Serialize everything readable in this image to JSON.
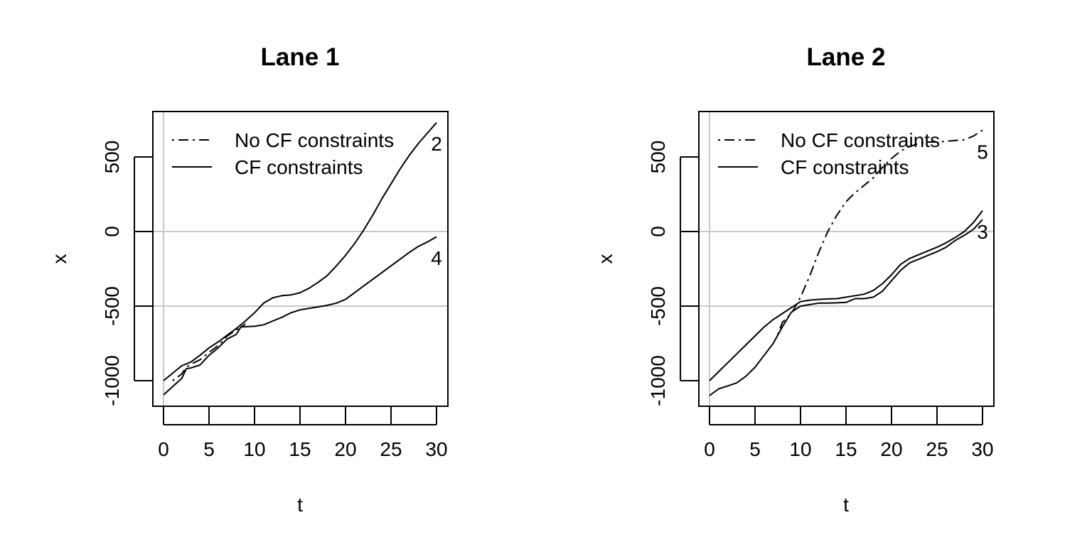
{
  "chart_data": [
    {
      "type": "line",
      "title": "Lane 1",
      "xlabel": "t",
      "ylabel": "x",
      "xlim": [
        0,
        30
      ],
      "ylim": [
        -1150,
        800
      ],
      "x_ticks": [
        "0",
        "5",
        "10",
        "15",
        "20",
        "25",
        "30"
      ],
      "y_ticks": [
        "-1000",
        "-500",
        "0",
        "500"
      ],
      "reference_lines": {
        "vertical": [
          0
        ],
        "horizontal": [
          0,
          -500
        ],
        "color": "#c8c8c8"
      },
      "legend": {
        "position": "top-left",
        "entries": [
          {
            "label": "No CF constraints",
            "style": "dashdot"
          },
          {
            "label": "CF constraints",
            "style": "solid"
          }
        ]
      },
      "series": [
        {
          "label": "2",
          "style": "solid",
          "points": [
            [
              0,
              -1000
            ],
            [
              1,
              -950
            ],
            [
              2,
              -900
            ],
            [
              3,
              -875
            ],
            [
              4,
              -830
            ],
            [
              5,
              -780
            ],
            [
              6,
              -740
            ],
            [
              7,
              -695
            ],
            [
              8,
              -650
            ],
            [
              9,
              -600
            ],
            [
              10,
              -545
            ],
            [
              11,
              -480
            ],
            [
              12,
              -445
            ],
            [
              13,
              -430
            ],
            [
              14,
              -425
            ],
            [
              15,
              -410
            ],
            [
              16,
              -380
            ],
            [
              17,
              -340
            ],
            [
              18,
              -295
            ],
            [
              19,
              -230
            ],
            [
              20,
              -160
            ],
            [
              21,
              -80
            ],
            [
              22,
              10
            ],
            [
              23,
              110
            ],
            [
              24,
              220
            ],
            [
              25,
              320
            ],
            [
              26,
              420
            ],
            [
              27,
              510
            ],
            [
              28,
              590
            ],
            [
              29,
              660
            ],
            [
              30,
              730
            ]
          ]
        },
        {
          "label": "4",
          "style": "solid",
          "points": [
            [
              0,
              -1095
            ],
            [
              1,
              -1040
            ],
            [
              2,
              -985
            ],
            [
              2.5,
              -920
            ],
            [
              3,
              -915
            ],
            [
              4,
              -895
            ],
            [
              5,
              -830
            ],
            [
              6,
              -780
            ],
            [
              7,
              -720
            ],
            [
              8,
              -690
            ],
            [
              8.5,
              -640
            ],
            [
              10,
              -635
            ],
            [
              11,
              -625
            ],
            [
              12,
              -600
            ],
            [
              13,
              -575
            ],
            [
              14,
              -545
            ],
            [
              15,
              -525
            ],
            [
              16,
              -515
            ],
            [
              17,
              -505
            ],
            [
              18,
              -495
            ],
            [
              19,
              -480
            ],
            [
              20,
              -455
            ],
            [
              21,
              -410
            ],
            [
              22,
              -365
            ],
            [
              23,
              -320
            ],
            [
              24,
              -275
            ],
            [
              25,
              -230
            ],
            [
              26,
              -185
            ],
            [
              27,
              -140
            ],
            [
              28,
              -100
            ],
            [
              29,
              -70
            ],
            [
              30,
              -35
            ]
          ]
        },
        {
          "label": "",
          "style": "dashdot",
          "points": [
            [
              1,
              -1000
            ],
            [
              2,
              -955
            ],
            [
              2.5,
              -910
            ],
            [
              3,
              -890
            ],
            [
              4,
              -860
            ],
            [
              5,
              -810
            ],
            [
              6,
              -765
            ],
            [
              7,
              -700
            ],
            [
              8,
              -660
            ],
            [
              9,
              -620
            ]
          ]
        }
      ],
      "curve_labels": [
        {
          "text": "2",
          "x": 30,
          "y": 590
        },
        {
          "text": "4",
          "x": 30,
          "y": -175
        }
      ]
    },
    {
      "type": "line",
      "title": "Lane 2",
      "xlabel": "t",
      "ylabel": "x",
      "xlim": [
        0,
        30
      ],
      "ylim": [
        -1150,
        800
      ],
      "x_ticks": [
        "0",
        "5",
        "10",
        "15",
        "20",
        "25",
        "30"
      ],
      "y_ticks": [
        "-1000",
        "-500",
        "0",
        "500"
      ],
      "reference_lines": {
        "vertical": [
          0
        ],
        "horizontal": [
          0,
          -500
        ],
        "color": "#c8c8c8"
      },
      "legend": {
        "position": "top-left",
        "entries": [
          {
            "label": "No CF constraints",
            "style": "dashdot"
          },
          {
            "label": "CF constraints",
            "style": "solid"
          }
        ]
      },
      "series": [
        {
          "label": "5",
          "style": "dashdot",
          "points": [
            [
              7.5,
              -690
            ],
            [
              8,
              -610
            ],
            [
              9,
              -550
            ],
            [
              10,
              -440
            ],
            [
              11,
              -300
            ],
            [
              12,
              -140
            ],
            [
              13,
              0
            ],
            [
              14,
              110
            ],
            [
              15,
              200
            ],
            [
              16,
              260
            ],
            [
              17,
              310
            ],
            [
              18,
              360
            ],
            [
              19,
              430
            ],
            [
              20,
              490
            ],
            [
              21,
              540
            ],
            [
              22,
              570
            ],
            [
              23,
              590
            ],
            [
              24,
              600
            ],
            [
              25,
              600
            ],
            [
              26,
              605
            ],
            [
              27,
              610
            ],
            [
              28,
              615
            ],
            [
              29,
              640
            ],
            [
              30,
              680
            ]
          ]
        },
        {
          "label": "3",
          "style": "solid",
          "points": [
            [
              0,
              -1100
            ],
            [
              1,
              -1055
            ],
            [
              2,
              -1035
            ],
            [
              3,
              -1015
            ],
            [
              4,
              -970
            ],
            [
              5,
              -910
            ],
            [
              6,
              -830
            ],
            [
              7,
              -750
            ],
            [
              8,
              -640
            ],
            [
              9,
              -540
            ],
            [
              10,
              -500
            ],
            [
              11,
              -490
            ],
            [
              12,
              -480
            ],
            [
              13,
              -480
            ],
            [
              14,
              -478
            ],
            [
              15,
              -475
            ],
            [
              16,
              -450
            ],
            [
              17,
              -450
            ],
            [
              18,
              -440
            ],
            [
              19,
              -400
            ],
            [
              20,
              -330
            ],
            [
              21,
              -260
            ],
            [
              22,
              -210
            ],
            [
              23,
              -185
            ],
            [
              24,
              -160
            ],
            [
              25,
              -135
            ],
            [
              26,
              -105
            ],
            [
              27,
              -60
            ],
            [
              28,
              -25
            ],
            [
              29,
              15
            ],
            [
              30,
              80
            ]
          ]
        },
        {
          "label": "",
          "style": "solid",
          "points": [
            [
              0,
              -1000
            ],
            [
              1,
              -940
            ],
            [
              2,
              -880
            ],
            [
              3,
              -820
            ],
            [
              4,
              -760
            ],
            [
              5,
              -700
            ],
            [
              6,
              -640
            ],
            [
              7,
              -590
            ],
            [
              8,
              -550
            ],
            [
              9,
              -510
            ],
            [
              10,
              -470
            ],
            [
              11,
              -460
            ],
            [
              12,
              -455
            ],
            [
              13,
              -452
            ],
            [
              14,
              -450
            ],
            [
              15,
              -440
            ],
            [
              16,
              -430
            ],
            [
              17,
              -420
            ],
            [
              18,
              -395
            ],
            [
              19,
              -350
            ],
            [
              20,
              -290
            ],
            [
              21,
              -220
            ],
            [
              22,
              -180
            ],
            [
              23,
              -155
            ],
            [
              24,
              -130
            ],
            [
              25,
              -105
            ],
            [
              26,
              -75
            ],
            [
              27,
              -40
            ],
            [
              28,
              0
            ],
            [
              29,
              60
            ],
            [
              30,
              140
            ]
          ]
        }
      ],
      "curve_labels": [
        {
          "text": "5",
          "x": 30,
          "y": 535
        },
        {
          "text": "3",
          "x": 30,
          "y": 0
        }
      ]
    }
  ]
}
